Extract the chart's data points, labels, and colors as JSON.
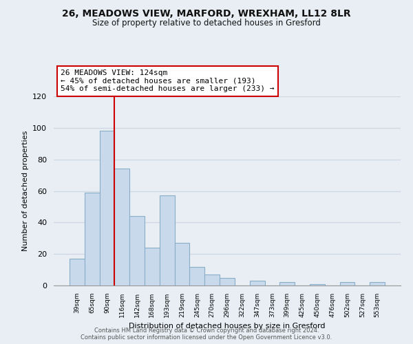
{
  "title": "26, MEADOWS VIEW, MARFORD, WREXHAM, LL12 8LR",
  "subtitle": "Size of property relative to detached houses in Gresford",
  "xlabel": "Distribution of detached houses by size in Gresford",
  "ylabel": "Number of detached properties",
  "categories": [
    "39sqm",
    "65sqm",
    "90sqm",
    "116sqm",
    "142sqm",
    "168sqm",
    "193sqm",
    "219sqm",
    "245sqm",
    "270sqm",
    "296sqm",
    "322sqm",
    "347sqm",
    "373sqm",
    "399sqm",
    "425sqm",
    "450sqm",
    "476sqm",
    "502sqm",
    "527sqm",
    "553sqm"
  ],
  "values": [
    17,
    59,
    98,
    74,
    44,
    24,
    57,
    27,
    12,
    7,
    5,
    0,
    3,
    0,
    2,
    0,
    1,
    0,
    2,
    0,
    2
  ],
  "bar_color": "#c8d9ec",
  "bar_edge_color": "#8aadc8",
  "vline_color": "#cc0000",
  "vline_index": 3,
  "annotation_text": "26 MEADOWS VIEW: 124sqm\n← 45% of detached houses are smaller (193)\n54% of semi-detached houses are larger (233) →",
  "annotation_box_facecolor": "#ffffff",
  "annotation_box_edgecolor": "#cc0000",
  "ylim": [
    0,
    120
  ],
  "yticks": [
    0,
    20,
    40,
    60,
    80,
    100,
    120
  ],
  "grid_color": "#d0d8e4",
  "background_color": "#e8eef4",
  "footer_line1": "Contains HM Land Registry data © Crown copyright and database right 2024.",
  "footer_line2": "Contains public sector information licensed under the Open Government Licence v3.0."
}
